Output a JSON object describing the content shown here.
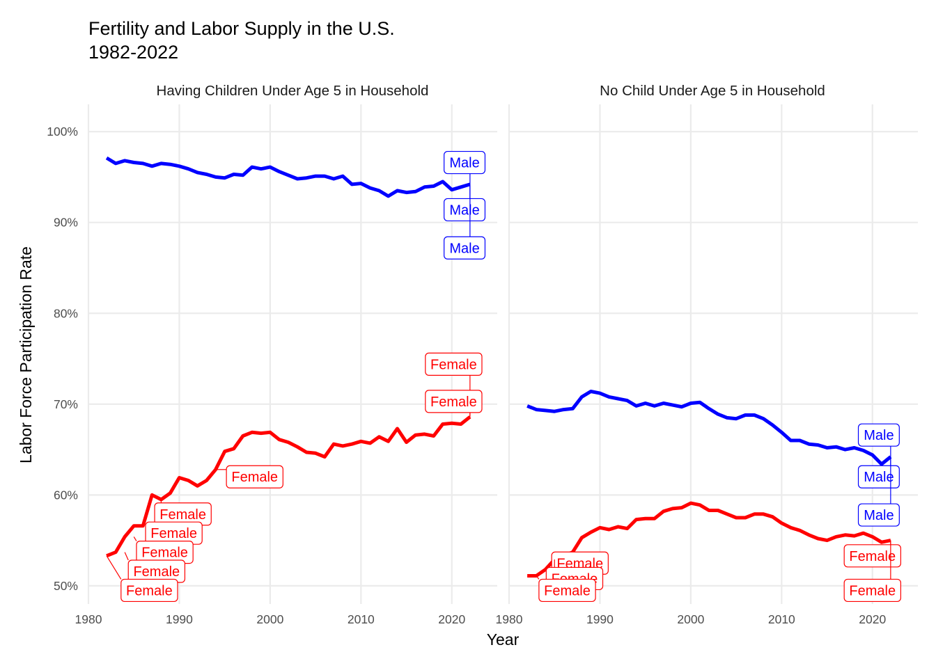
{
  "chart_data": {
    "type": "line",
    "title": "Fertility and Labor Supply in the U.S.",
    "subtitle": "1982-2022",
    "xlabel": "Year",
    "ylabel": "Labor Force Participation Rate",
    "xlim": [
      1980,
      2025
    ],
    "ylim": [
      48,
      103
    ],
    "x_ticks": [
      1980,
      1990,
      2000,
      2010,
      2020
    ],
    "y_ticks": [
      50,
      60,
      70,
      80,
      90,
      100
    ],
    "y_tick_format": "percent",
    "grid": true,
    "legend": "none",
    "colors": {
      "Male": "#0000ff",
      "Female": "#ff0000"
    },
    "panels": [
      {
        "title": "Having Children Under Age 5 in Household",
        "series": [
          {
            "name": "Male",
            "x": [
              1982,
              1983,
              1984,
              1985,
              1986,
              1987,
              1988,
              1989,
              1990,
              1991,
              1992,
              1993,
              1994,
              1995,
              1996,
              1997,
              1998,
              1999,
              2000,
              2001,
              2002,
              2003,
              2004,
              2005,
              2006,
              2007,
              2008,
              2009,
              2010,
              2011,
              2012,
              2013,
              2014,
              2015,
              2016,
              2017,
              2018,
              2019,
              2020,
              2021,
              2022
            ],
            "values": [
              97.1,
              96.5,
              96.8,
              96.6,
              96.5,
              96.2,
              96.5,
              96.4,
              96.2,
              95.9,
              95.5,
              95.3,
              95.0,
              94.9,
              95.3,
              95.2,
              96.1,
              95.9,
              96.1,
              95.6,
              95.2,
              94.8,
              94.9,
              95.1,
              95.1,
              94.8,
              95.1,
              94.2,
              94.3,
              93.8,
              93.5,
              92.9,
              93.5,
              93.3,
              93.4,
              93.9,
              94.0,
              94.5,
              93.6,
              93.9,
              94.2
            ]
          },
          {
            "name": "Female",
            "x": [
              1982,
              1983,
              1984,
              1985,
              1986,
              1987,
              1988,
              1989,
              1990,
              1991,
              1992,
              1993,
              1994,
              1995,
              1996,
              1997,
              1998,
              1999,
              2000,
              2001,
              2002,
              2003,
              2004,
              2005,
              2006,
              2007,
              2008,
              2009,
              2010,
              2011,
              2012,
              2013,
              2014,
              2015,
              2016,
              2017,
              2018,
              2019,
              2020,
              2021,
              2022
            ],
            "values": [
              53.3,
              53.7,
              55.4,
              56.6,
              56.6,
              60.0,
              59.5,
              60.2,
              61.9,
              61.6,
              61.0,
              61.6,
              62.8,
              64.8,
              65.1,
              66.5,
              66.9,
              66.8,
              66.9,
              66.1,
              65.8,
              65.3,
              64.7,
              64.6,
              64.2,
              65.6,
              65.4,
              65.6,
              65.9,
              65.7,
              66.4,
              65.9,
              67.3,
              65.8,
              66.6,
              66.7,
              66.5,
              67.8,
              67.9,
              67.8,
              68.6
            ]
          }
        ],
        "labels": [
          {
            "text": "Male",
            "series": "Male"
          },
          {
            "text": "Male",
            "series": "Male"
          },
          {
            "text": "Male",
            "series": "Male"
          },
          {
            "text": "Female",
            "series": "Female"
          },
          {
            "text": "Female",
            "series": "Female"
          },
          {
            "text": "Female",
            "series": "Female"
          },
          {
            "text": "Female",
            "series": "Female"
          },
          {
            "text": "Female",
            "series": "Female"
          },
          {
            "text": "Female",
            "series": "Female"
          },
          {
            "text": "Female",
            "series": "Female"
          },
          {
            "text": "Female",
            "series": "Female"
          }
        ]
      },
      {
        "title": "No Child Under Age 5 in Household",
        "series": [
          {
            "name": "Male",
            "x": [
              1982,
              1983,
              1984,
              1985,
              1986,
              1987,
              1988,
              1989,
              1990,
              1991,
              1992,
              1993,
              1994,
              1995,
              1996,
              1997,
              1998,
              1999,
              2000,
              2001,
              2002,
              2003,
              2004,
              2005,
              2006,
              2007,
              2008,
              2009,
              2010,
              2011,
              2012,
              2013,
              2014,
              2015,
              2016,
              2017,
              2018,
              2019,
              2020,
              2021,
              2022
            ],
            "values": [
              69.8,
              69.4,
              69.3,
              69.2,
              69.4,
              69.5,
              70.8,
              71.4,
              71.2,
              70.8,
              70.6,
              70.4,
              69.8,
              70.1,
              69.8,
              70.1,
              69.9,
              69.7,
              70.1,
              70.2,
              69.5,
              68.9,
              68.5,
              68.4,
              68.8,
              68.8,
              68.4,
              67.7,
              66.9,
              66.0,
              66.0,
              65.6,
              65.5,
              65.2,
              65.3,
              65.0,
              65.2,
              64.9,
              64.4,
              63.4,
              64.2
            ]
          },
          {
            "name": "Female",
            "x": [
              1982,
              1983,
              1984,
              1985,
              1986,
              1987,
              1988,
              1989,
              1990,
              1991,
              1992,
              1993,
              1994,
              1995,
              1996,
              1997,
              1998,
              1999,
              2000,
              2001,
              2002,
              2003,
              2004,
              2005,
              2006,
              2007,
              2008,
              2009,
              2010,
              2011,
              2012,
              2013,
              2014,
              2015,
              2016,
              2017,
              2018,
              2019,
              2020,
              2021,
              2022
            ],
            "values": [
              51.1,
              51.1,
              51.8,
              52.9,
              53.3,
              53.7,
              55.3,
              55.9,
              56.4,
              56.2,
              56.5,
              56.3,
              57.3,
              57.4,
              57.4,
              58.2,
              58.5,
              58.6,
              59.1,
              58.9,
              58.3,
              58.3,
              57.9,
              57.5,
              57.5,
              57.9,
              57.9,
              57.6,
              56.9,
              56.4,
              56.1,
              55.6,
              55.2,
              55.0,
              55.4,
              55.6,
              55.5,
              55.8,
              55.4,
              54.8,
              55.0
            ]
          }
        ],
        "labels": [
          {
            "text": "Male",
            "series": "Male"
          },
          {
            "text": "Male",
            "series": "Male"
          },
          {
            "text": "Male",
            "series": "Male"
          },
          {
            "text": "Female",
            "series": "Female"
          },
          {
            "text": "Female",
            "series": "Female"
          },
          {
            "text": "Female",
            "series": "Female"
          },
          {
            "text": "Female",
            "series": "Female"
          },
          {
            "text": "Female",
            "series": "Female"
          }
        ]
      }
    ]
  }
}
